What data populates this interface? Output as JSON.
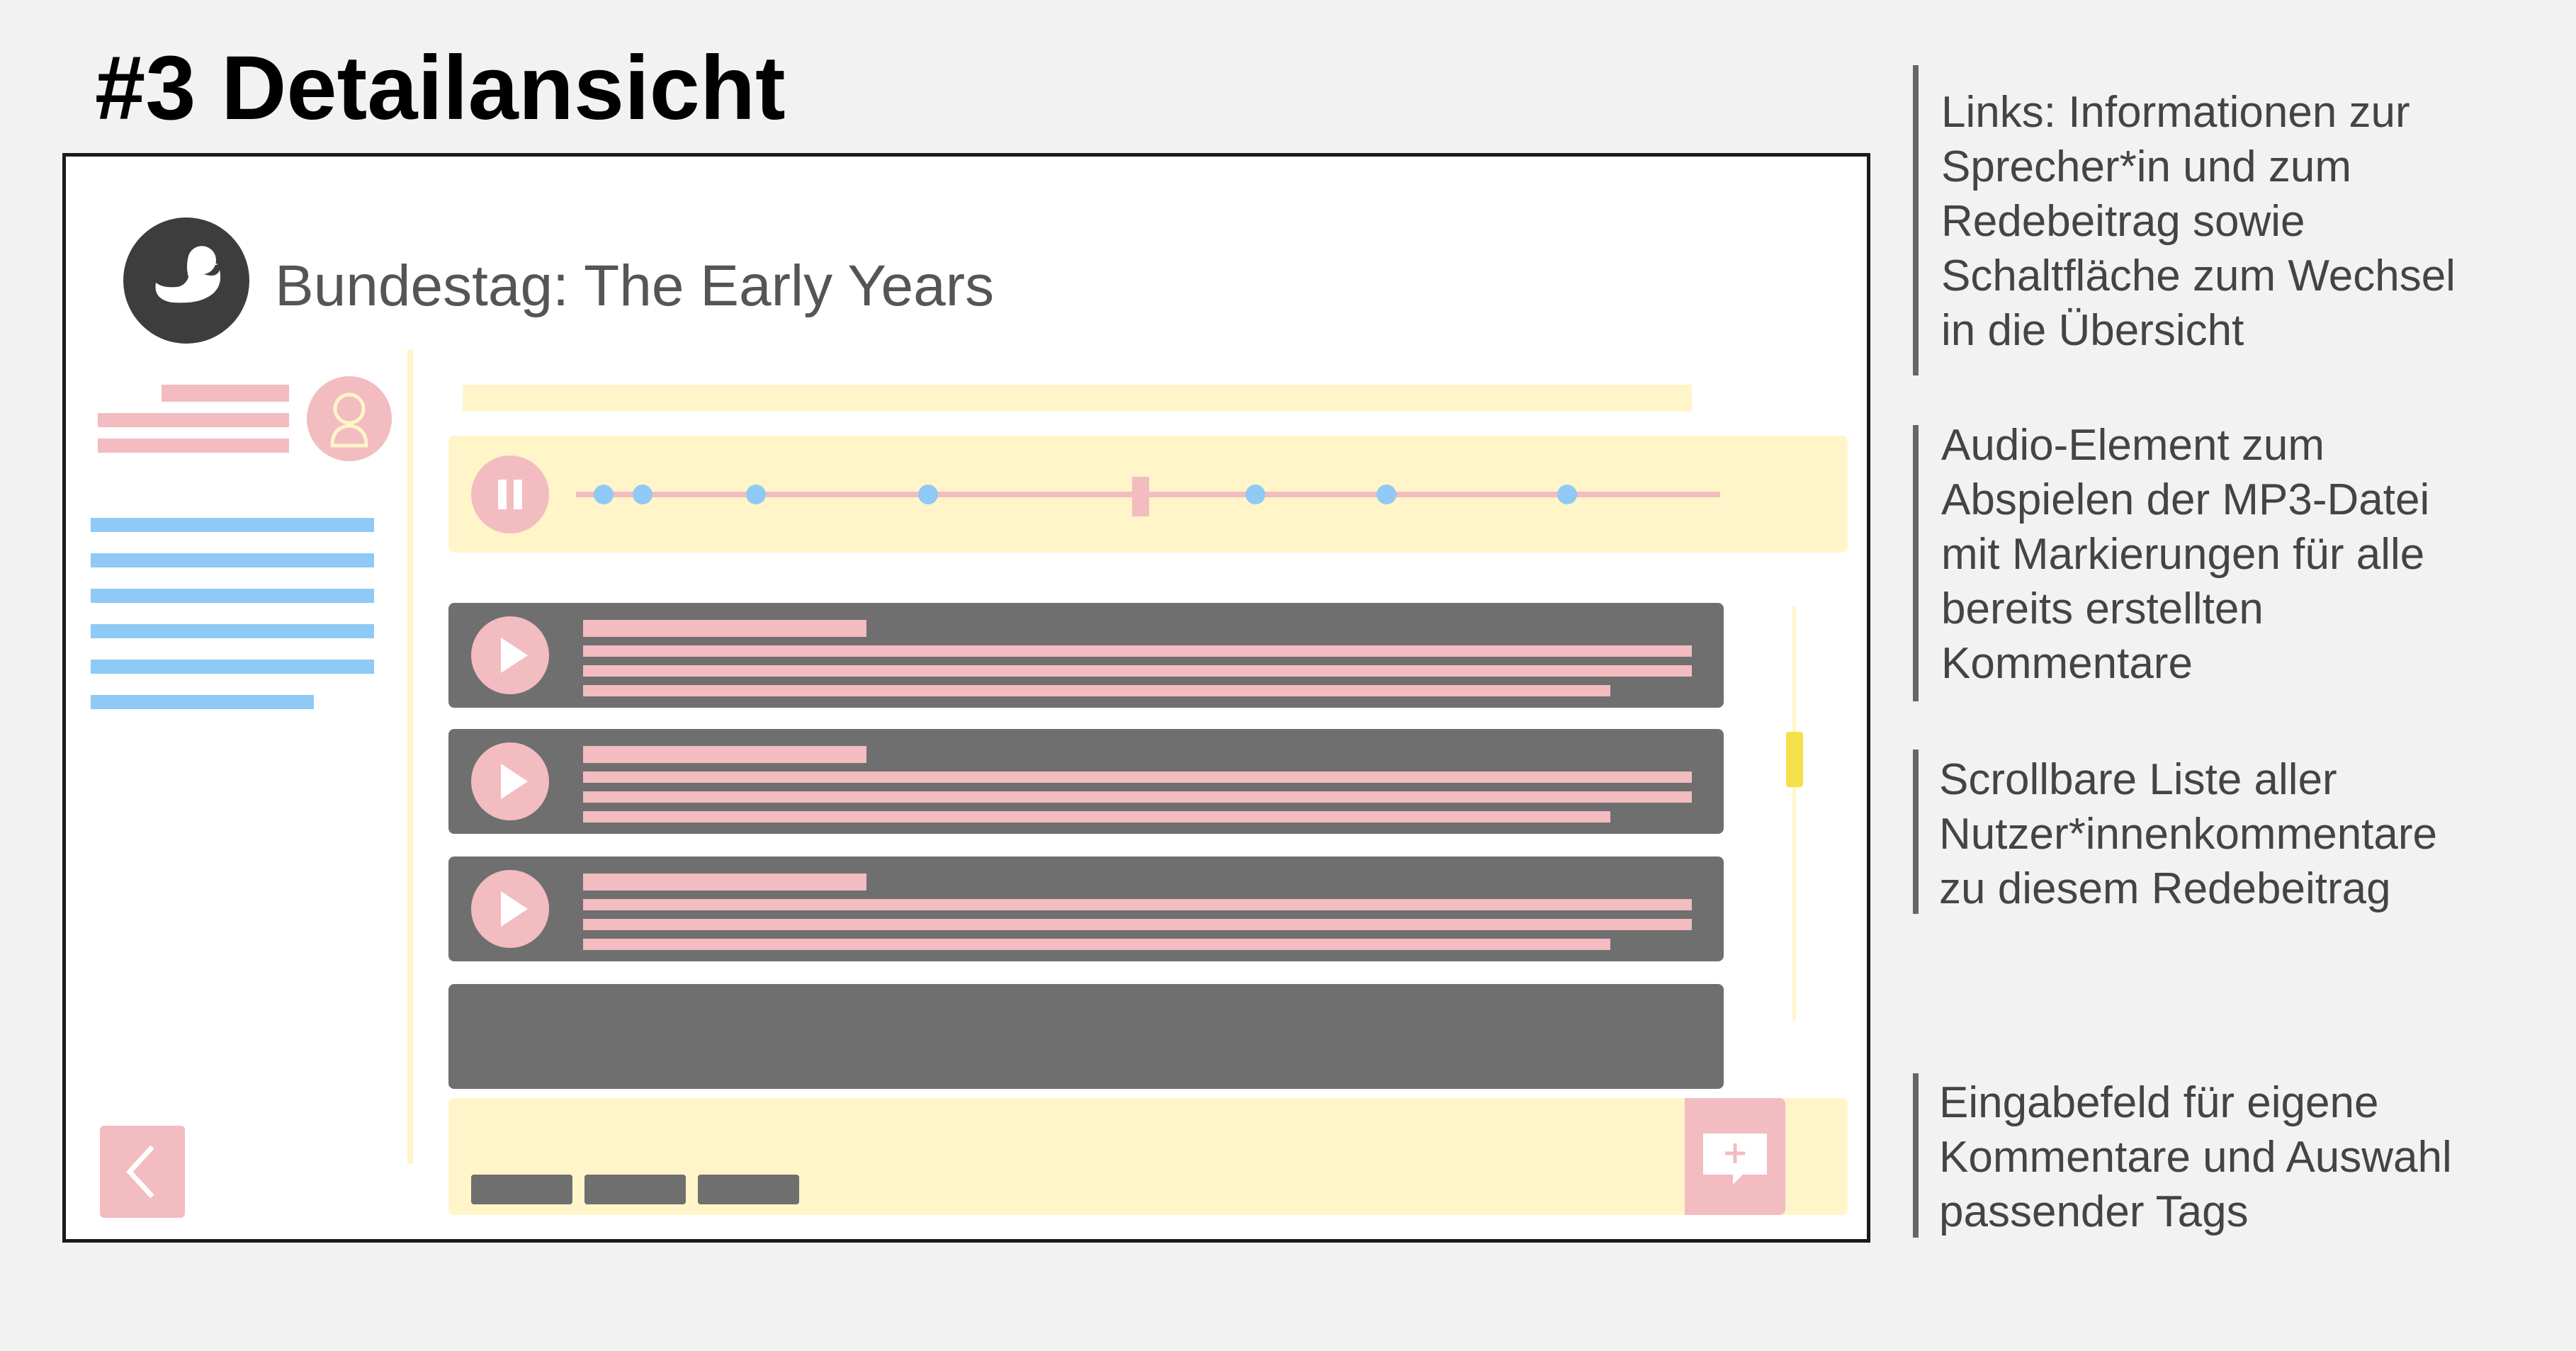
{
  "page": {
    "title": "#3 Detailansicht"
  },
  "app": {
    "title": "Bundestag: The Early Years",
    "logo_icon": "duck-icon",
    "back_icon": "chevron-left-icon",
    "add_comment_icon": "add-comment-icon",
    "pause_icon": "pause-icon",
    "play_icon": "play-icon",
    "speaker_avatar_icon": "speaker-avatar-icon"
  },
  "notes": [
    {
      "lines": [
        "Links: Informationen zur",
        "Sprecher*in und zum",
        "Redebeitrag sowie",
        "Schaltfläche zum Wechsel",
        "in die Übersicht"
      ]
    },
    {
      "lines": [
        "Audio-Element zum",
        "Abspielen der MP3-Datei",
        "mit Markierungen für alle",
        "bereits erstellten",
        "Kommentare"
      ]
    },
    {
      "lines": [
        "Scrollbare Liste aller",
        "Nutzer*innenkommentare",
        "zu diesem Redebeitrag"
      ]
    },
    {
      "lines": [
        "Eingabefeld für eigene",
        "Kommentare und Auswahl",
        "passender Tags"
      ]
    }
  ],
  "colors": {
    "placeholder_pink": "#f2bcc0",
    "placeholder_blue": "#8ecaf5",
    "placeholder_yellow": "#fff5c8",
    "comment_dark": "#6f6f6f",
    "scroll_thumb": "#f5e04a"
  }
}
